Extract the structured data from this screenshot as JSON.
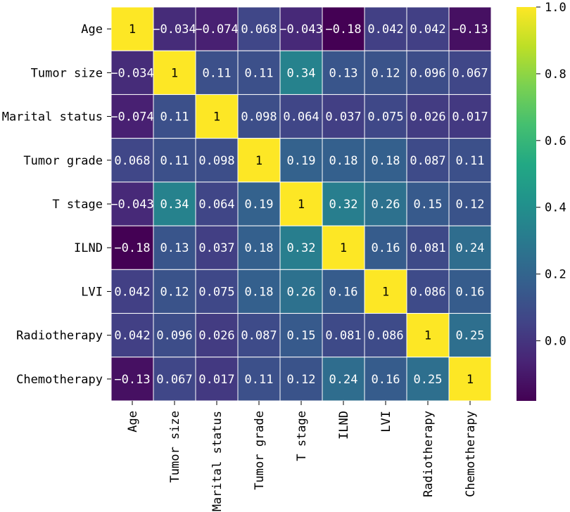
{
  "chart_data": {
    "type": "heatmap",
    "title": "",
    "xlabel": "",
    "ylabel": "",
    "row_labels": [
      "Age",
      "Tumor size",
      "Marital status",
      "Tumor grade",
      "T stage",
      "ILND",
      "LVI",
      "Radiotherapy",
      "Chemotherapy"
    ],
    "col_labels": [
      "Age",
      "Tumor size",
      "Marital status",
      "Tumor grade",
      "T stage",
      "ILND",
      "LVI",
      "Radiotherapy",
      "Chemotherapy"
    ],
    "values": [
      [
        1,
        -0.034,
        -0.074,
        0.068,
        -0.043,
        -0.18,
        0.042,
        0.042,
        -0.13
      ],
      [
        -0.034,
        1,
        0.11,
        0.11,
        0.34,
        0.13,
        0.12,
        0.096,
        0.067
      ],
      [
        -0.074,
        0.11,
        1,
        0.098,
        0.064,
        0.037,
        0.075,
        0.026,
        0.017
      ],
      [
        0.068,
        0.11,
        0.098,
        1,
        0.19,
        0.18,
        0.18,
        0.087,
        0.11
      ],
      [
        -0.043,
        0.34,
        0.064,
        0.19,
        1,
        0.32,
        0.26,
        0.15,
        0.12
      ],
      [
        -0.18,
        0.13,
        0.037,
        0.18,
        0.32,
        1,
        0.16,
        0.081,
        0.24
      ],
      [
        0.042,
        0.12,
        0.075,
        0.18,
        0.26,
        0.16,
        1,
        0.086,
        0.16
      ],
      [
        0.042,
        0.096,
        0.026,
        0.087,
        0.15,
        0.081,
        0.086,
        1,
        0.25
      ],
      [
        -0.13,
        0.067,
        0.017,
        0.11,
        0.12,
        0.24,
        0.16,
        0.25,
        1
      ]
    ],
    "labels": [
      [
        "1",
        "−0.034",
        "−0.074",
        "0.068",
        "−0.043",
        "−0.18",
        "0.042",
        "0.042",
        "−0.13"
      ],
      [
        "−0.034",
        "1",
        "0.11",
        "0.11",
        "0.34",
        "0.13",
        "0.12",
        "0.096",
        "0.067"
      ],
      [
        "−0.074",
        "0.11",
        "1",
        "0.098",
        "0.064",
        "0.037",
        "0.075",
        "0.026",
        "0.017"
      ],
      [
        "0.068",
        "0.11",
        "0.098",
        "1",
        "0.19",
        "0.18",
        "0.18",
        "0.087",
        "0.11"
      ],
      [
        "−0.043",
        "0.34",
        "0.064",
        "0.19",
        "1",
        "0.32",
        "0.26",
        "0.15",
        "0.12"
      ],
      [
        "−0.18",
        "0.13",
        "0.037",
        "0.18",
        "0.32",
        "1",
        "0.16",
        "0.081",
        "0.24"
      ],
      [
        "0.042",
        "0.12",
        "0.075",
        "0.18",
        "0.26",
        "0.16",
        "1",
        "0.086",
        "0.16"
      ],
      [
        "0.042",
        "0.096",
        "0.026",
        "0.087",
        "0.15",
        "0.081",
        "0.086",
        "1",
        "0.25"
      ],
      [
        "−0.13",
        "0.067",
        "0.017",
        "0.11",
        "0.12",
        "0.24",
        "0.16",
        "0.25",
        "1"
      ]
    ],
    "colormap": "viridis",
    "vmin": -0.18,
    "vmax": 1.0,
    "colorbar": {
      "ticks": [
        0.0,
        0.2,
        0.4,
        0.6,
        0.8,
        1.0
      ],
      "tick_labels": [
        "0.0",
        "0.2",
        "0.4",
        "0.6",
        "0.8",
        "1.0"
      ]
    },
    "grid_color": "#ffffff"
  }
}
